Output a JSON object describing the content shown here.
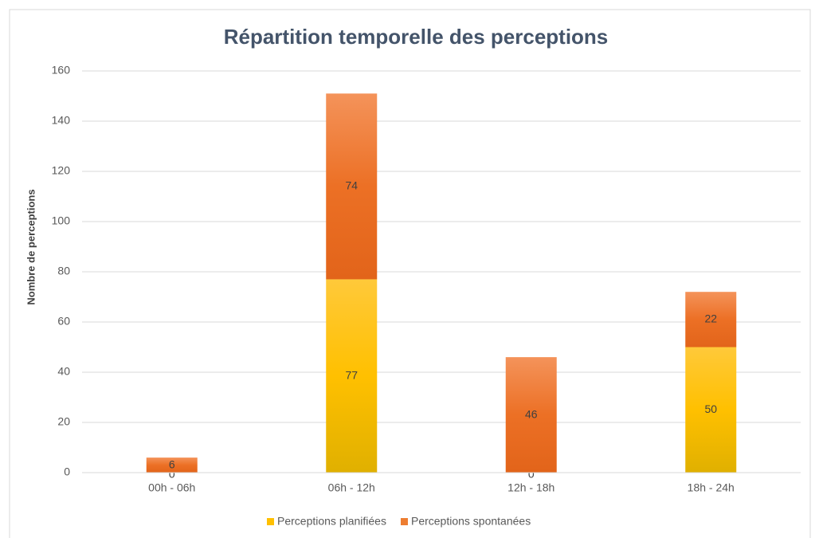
{
  "chart_data": {
    "type": "stacked_bar",
    "title": "Répartition temporelle des perceptions",
    "y_label": "Nombre de perceptions",
    "categories": [
      "00h - 06h",
      "06h - 12h",
      "12h - 18h",
      "18h - 24h"
    ],
    "series": [
      {
        "name": "Perceptions planifiées",
        "color": "#ffc000",
        "values": [
          0,
          77,
          0,
          50
        ]
      },
      {
        "name": "Perceptions spontanées",
        "color": "#ed7d31",
        "values": [
          6,
          74,
          46,
          22
        ]
      }
    ],
    "ylim": [
      0,
      160
    ],
    "yticks": [
      0,
      20,
      40,
      60,
      80,
      100,
      120,
      140,
      160
    ],
    "grid": true,
    "legend": "bottom"
  }
}
